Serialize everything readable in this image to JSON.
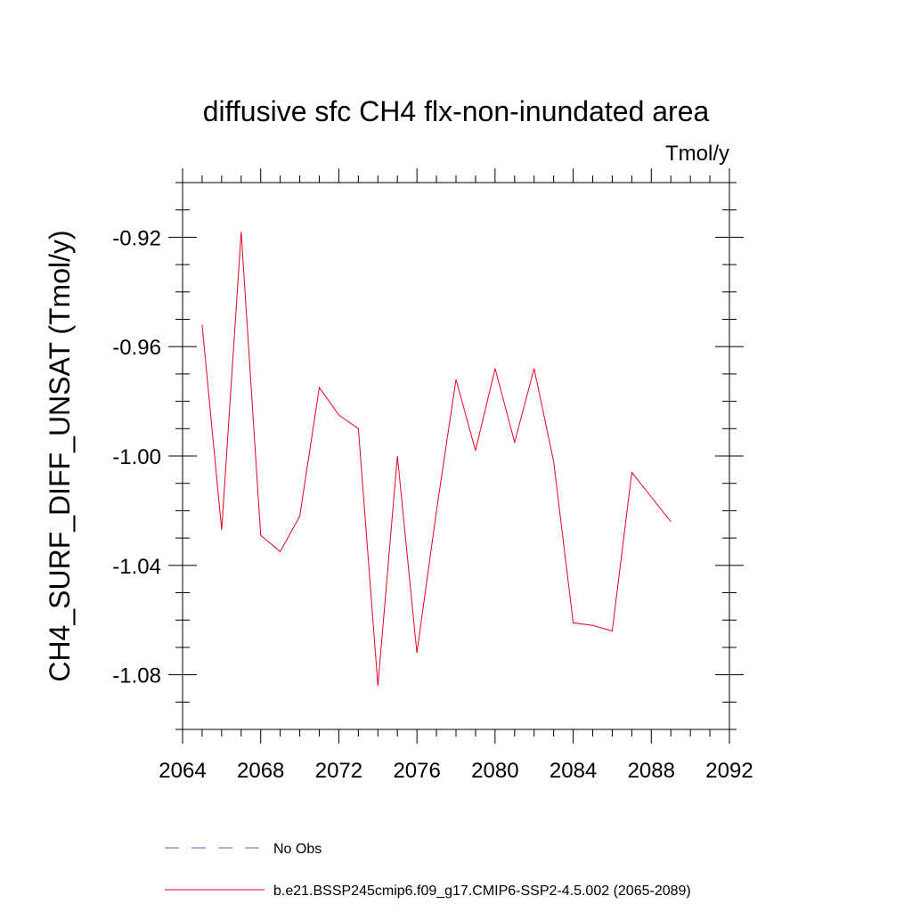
{
  "chart_data": {
    "type": "line",
    "title": "diffusive sfc CH4 flx-non-inundated area",
    "units": "Tmol/y",
    "ylabel": "CH4_SURF_DIFF_UNSAT  (Tmol/y)",
    "xlabel": "",
    "xlim": [
      2064,
      2092
    ],
    "ylim": [
      -1.1,
      -0.9
    ],
    "xticks": [
      2064,
      2068,
      2072,
      2076,
      2080,
      2084,
      2088,
      2092
    ],
    "xtick_labels": [
      "2064",
      "2068",
      "2072",
      "2076",
      "2080",
      "2084",
      "2088",
      "2092"
    ],
    "yticks": [
      -0.92,
      -0.96,
      -1.0,
      -1.04,
      -1.08
    ],
    "ytick_labels": [
      "-0.92",
      "-0.96",
      "-1.00",
      "-1.04",
      "-1.08"
    ],
    "grid": false,
    "legend_position": "bottom",
    "series": [
      {
        "name": "b.e21.BSSP245cmip6.f09_g17.CMIP6-SSP2-4.5.002 (2065-2089)",
        "color": "#e8001c",
        "style": "solid",
        "x": [
          2065,
          2066,
          2067,
          2068,
          2069,
          2070,
          2071,
          2072,
          2073,
          2074,
          2075,
          2076,
          2077,
          2078,
          2079,
          2080,
          2081,
          2082,
          2083,
          2084,
          2085,
          2086,
          2087,
          2088,
          2089
        ],
        "y": [
          -0.952,
          -1.027,
          -0.918,
          -1.029,
          -1.035,
          -1.022,
          -0.975,
          -0.985,
          -0.99,
          -1.084,
          -1.0,
          -1.072,
          -1.02,
          -0.972,
          -0.998,
          -0.968,
          -0.995,
          -0.968,
          -1.002,
          -1.061,
          -1.062,
          -1.064,
          -1.006,
          -1.015,
          -1.024
        ]
      }
    ],
    "legend": [
      {
        "label": "No Obs",
        "color": "#6a5acd",
        "style": "dashed"
      },
      {
        "label": "b.e21.BSSP245cmip6.f09_g17.CMIP6-SSP2-4.5.002 (2065-2089)",
        "color": "#e8001c",
        "style": "solid"
      }
    ]
  }
}
